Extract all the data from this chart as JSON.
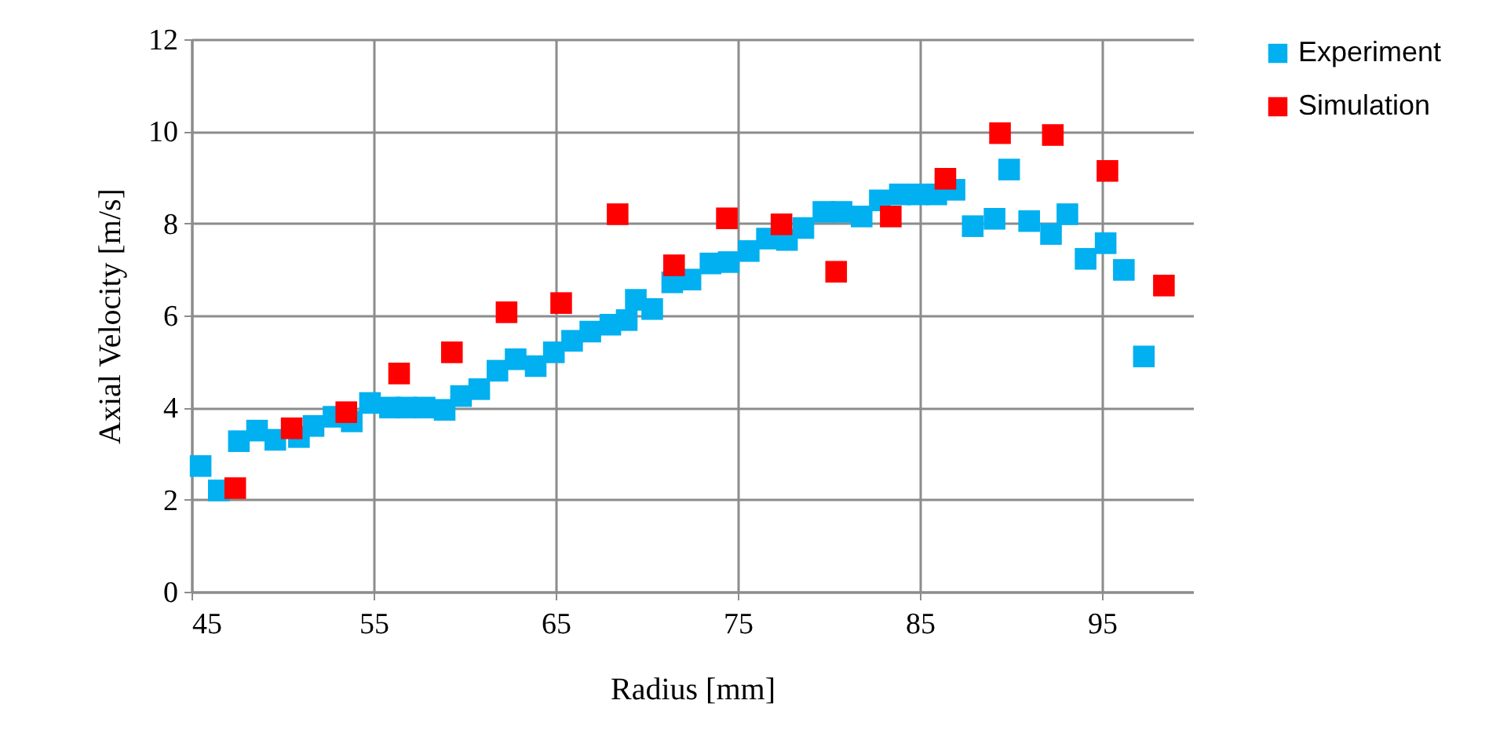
{
  "chart_data": {
    "type": "scatter",
    "xlabel": "Radius [mm]",
    "ylabel": "Axial Velocity [m/s]",
    "xlim": [
      45,
      100
    ],
    "xticks": [
      45,
      55,
      65,
      75,
      85,
      95
    ],
    "ylim": [
      0,
      12
    ],
    "yticks": [
      0,
      2,
      4,
      6,
      8,
      10,
      12
    ],
    "grid": true,
    "legend": "right",
    "marker": "square",
    "series": [
      {
        "name": "Experiment",
        "color": "#00b0f0",
        "x": [
          45.5,
          46.5,
          47.6,
          48.6,
          49.6,
          50.9,
          51.7,
          52.8,
          53.8,
          54.8,
          55.9,
          56.8,
          57.8,
          58.9,
          59.8,
          60.8,
          61.8,
          62.8,
          63.9,
          64.9,
          65.9,
          66.9,
          68.0,
          68.9,
          69.4,
          70.3,
          71.4,
          72.4,
          73.5,
          74.5,
          75.6,
          76.6,
          77.7,
          78.6,
          79.7,
          80.7,
          81.8,
          82.8,
          83.9,
          84.9,
          85.9,
          86.9,
          87.9,
          89.1,
          89.9,
          91.0,
          92.2,
          93.1,
          94.1,
          95.2,
          96.2,
          97.3
        ],
        "values": [
          2.73,
          2.2,
          3.27,
          3.5,
          3.3,
          3.36,
          3.6,
          3.8,
          3.7,
          4.1,
          4.0,
          4.0,
          4.0,
          3.95,
          4.25,
          4.4,
          4.8,
          5.05,
          4.9,
          5.2,
          5.45,
          5.65,
          5.8,
          5.9,
          6.34,
          6.14,
          6.72,
          6.78,
          7.13,
          7.16,
          7.4,
          7.67,
          7.64,
          7.9,
          8.25,
          8.25,
          8.15,
          8.5,
          8.63,
          8.63,
          8.63,
          8.73,
          7.94,
          8.1,
          9.17,
          8.05,
          7.77,
          8.2,
          7.23,
          7.57,
          6.99,
          5.11
        ]
      },
      {
        "name": "Simulation",
        "color": "#ff0000",
        "x": [
          47.4,
          50.5,
          53.5,
          56.4,
          59.3,
          62.3,
          65.3,
          68.4,
          71.5,
          74.4,
          77.4,
          80.4,
          83.4,
          86.4,
          89.4,
          92.3,
          95.3,
          98.4
        ],
        "values": [
          2.25,
          3.55,
          3.9,
          4.74,
          5.2,
          6.07,
          6.27,
          8.2,
          7.09,
          8.11,
          7.98,
          6.95,
          8.15,
          8.97,
          9.96,
          9.92,
          9.14,
          6.65
        ]
      }
    ]
  }
}
